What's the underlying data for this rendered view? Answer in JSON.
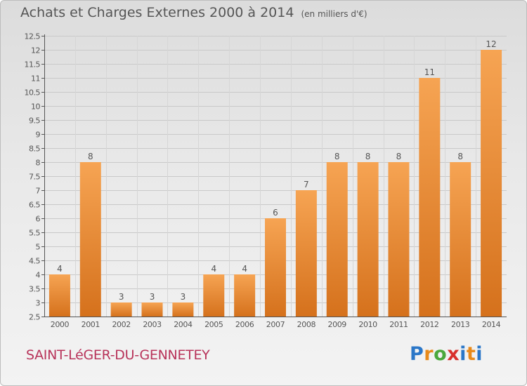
{
  "header": {
    "title": "Achats et Charges Externes 2000 à 2014",
    "subtitle": "(en milliers d'€)"
  },
  "footer": {
    "commune": "SAINT-LéGER-DU-GENNETEY",
    "logo": "Proxiti"
  },
  "colors": {
    "bar_light": "#f6a453",
    "bar_dark": "#d5711c",
    "grid": "#c9c9c9",
    "axis": "#555555",
    "text": "#555555"
  },
  "chart_data": {
    "type": "bar",
    "title": "Achats et Charges Externes 2000 à 2014",
    "subtitle": "(en milliers d'€)",
    "categories": [
      "2000",
      "2001",
      "2002",
      "2003",
      "2004",
      "2005",
      "2006",
      "2007",
      "2008",
      "2009",
      "2010",
      "2011",
      "2012",
      "2013",
      "2014"
    ],
    "values": [
      4,
      8,
      3,
      3,
      3,
      4,
      4,
      6,
      7,
      8,
      8,
      8,
      11,
      8,
      12
    ],
    "data_labels": [
      "4",
      "8",
      "3",
      "3",
      "3",
      "4",
      "4",
      "6",
      "7",
      "8",
      "8",
      "8",
      "11",
      "8",
      "12"
    ],
    "yticks": [
      "2.5",
      "3",
      "3.5",
      "4",
      "4.5",
      "5",
      "5.5",
      "6",
      "6.5",
      "7",
      "7.5",
      "8",
      "8.5",
      "9",
      "9.5",
      "10",
      "10.5",
      "11",
      "11.5",
      "12",
      "12.5"
    ],
    "ylim": [
      2.5,
      12.5
    ],
    "xlabel": "",
    "ylabel": "",
    "grid": true,
    "legend": "none"
  }
}
